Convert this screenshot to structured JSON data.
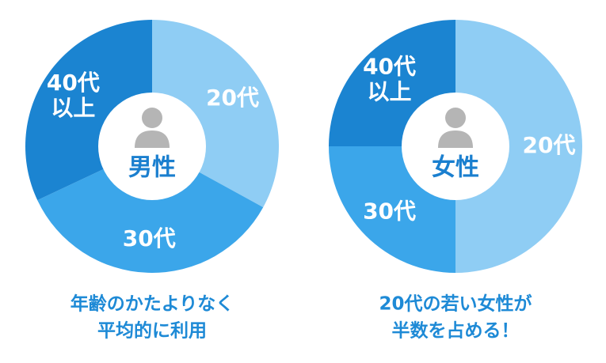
{
  "chart_data": [
    {
      "type": "pie",
      "center_label": "男性",
      "caption": [
        "年齢のかたよりなく",
        "平均的に利用"
      ],
      "categories": [
        "20代",
        "30代",
        "40代\n以上"
      ],
      "values": [
        33,
        35,
        32
      ],
      "colors": [
        "#8fcdf4",
        "#3ba6ea",
        "#1b84d1"
      ]
    },
    {
      "type": "pie",
      "center_label": "女性",
      "caption": [
        "20代の若い女性が",
        "半数を占める！"
      ],
      "categories": [
        "20代",
        "30代",
        "40代\n以上"
      ],
      "values": [
        50,
        25,
        25
      ],
      "colors": [
        "#8fcdf4",
        "#3ba6ea",
        "#1b84d1"
      ]
    }
  ]
}
